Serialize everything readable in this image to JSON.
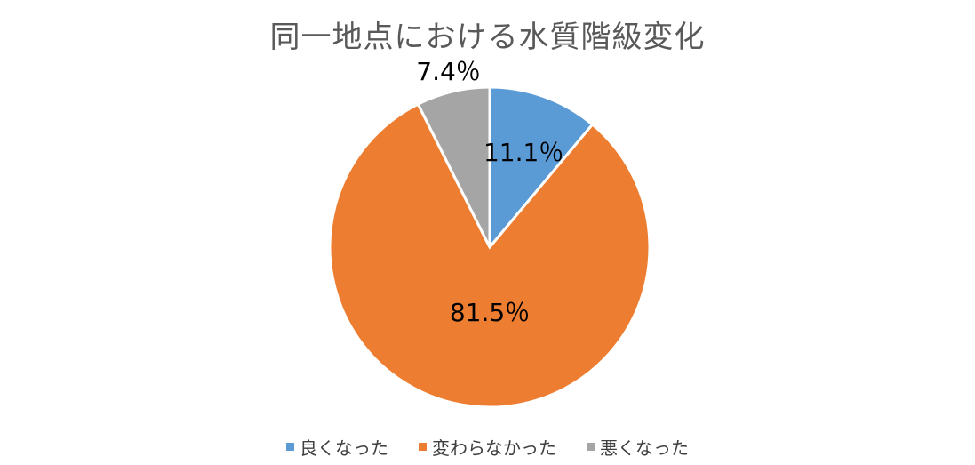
{
  "chart_data": {
    "type": "pie",
    "title": "同一地点における水質階級変化",
    "slices": [
      {
        "name": "良くなった",
        "value": 11.1,
        "label": "11.1％",
        "color": "#5B9BD5"
      },
      {
        "name": "変わらなかった",
        "value": 81.5,
        "label": "81.5％",
        "color": "#ED7D31"
      },
      {
        "name": "悪くなった",
        "value": 7.4,
        "label": "7.4％",
        "color": "#A5A5A5"
      }
    ],
    "legend_position": "bottom"
  }
}
